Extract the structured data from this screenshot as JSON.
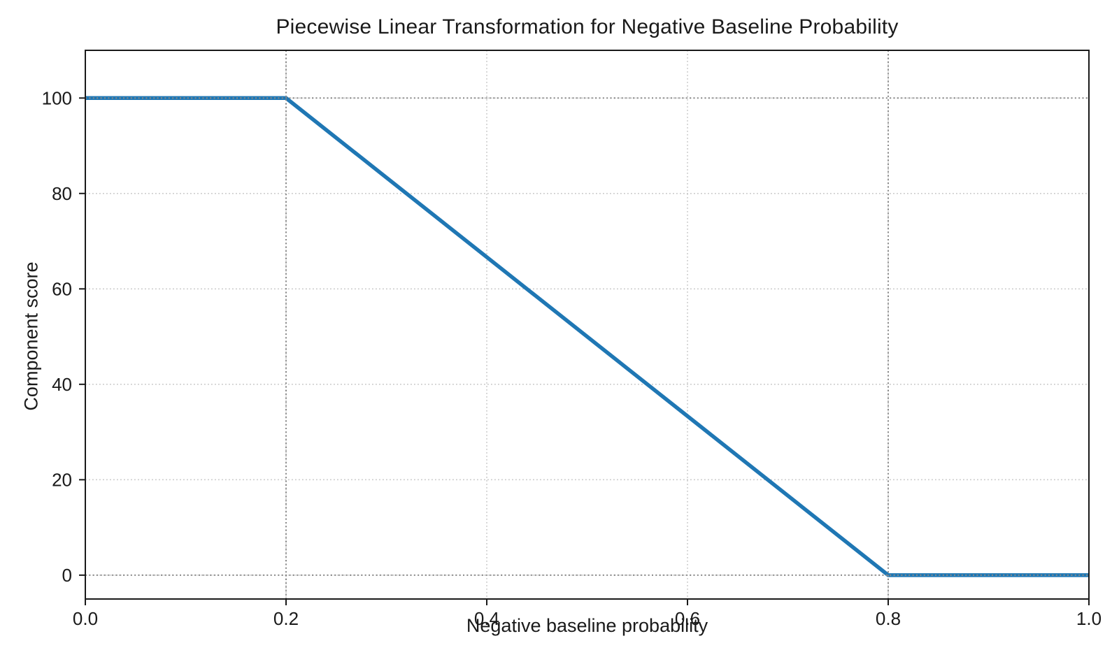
{
  "chart_data": {
    "type": "line",
    "title": "Piecewise Linear Transformation for Negative Baseline Probability",
    "xlabel": "Negative baseline probability",
    "ylabel": "Component score",
    "xlim": [
      0.0,
      1.0
    ],
    "ylim": [
      -5,
      110
    ],
    "x_ticks": {
      "values": [
        0.0,
        0.2,
        0.4,
        0.6,
        0.8,
        1.0
      ],
      "labels": [
        "0.0",
        "0.2",
        "0.4",
        "0.6",
        "0.8",
        "1.0"
      ]
    },
    "y_ticks": {
      "values": [
        0,
        20,
        40,
        60,
        80,
        100
      ],
      "labels": [
        "0",
        "20",
        "40",
        "60",
        "80",
        "100"
      ]
    },
    "series": [
      {
        "name": "component-score",
        "color": "#1f77b4",
        "linewidth": 5.5,
        "points": [
          [
            0.0,
            100
          ],
          [
            0.2,
            100
          ],
          [
            0.8,
            0
          ],
          [
            1.0,
            0
          ]
        ]
      }
    ],
    "grid": {
      "show": true,
      "linestyle": "dotted",
      "color": "#c9c9c9"
    },
    "reference_lines": {
      "vertical_x": [
        0.2,
        0.8
      ],
      "horizontal_y": [
        100,
        0
      ],
      "linestyle": "dotted",
      "color": "#8a8a8a"
    },
    "colors": {
      "line": "#1f77b4",
      "spine": "#1a1a1a",
      "text": "#1a1a1a"
    },
    "legend": {
      "show": false
    }
  }
}
